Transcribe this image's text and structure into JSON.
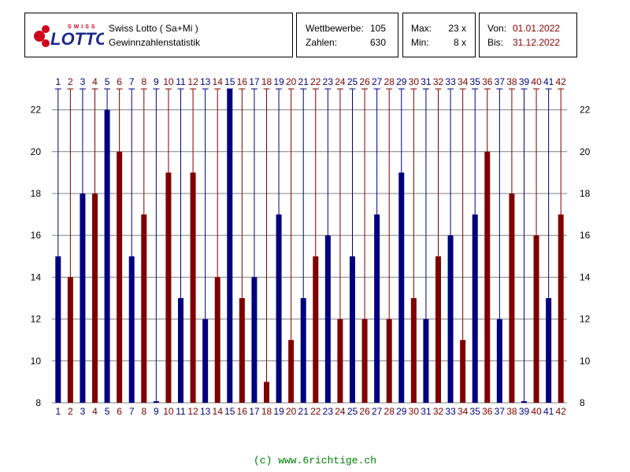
{
  "header": {
    "logo_top": "SWISS",
    "logo_main": "LOTTO",
    "title": "Swiss Lotto ( Sa+Mi )",
    "subtitle": "Gewinnzahlenstatistik",
    "competitions_label": "Wettbewerbe:",
    "competitions_value": "105",
    "numbers_label": "Zahlen:",
    "numbers_value": "630",
    "max_label": "Max:",
    "max_value": "23 x",
    "min_label": "Min:",
    "min_value": "8 x",
    "from_label": "Von:",
    "from_value": "01.01.2022",
    "to_label": "Bis:",
    "to_value": "31.12.2022"
  },
  "colors": {
    "odd_bar": "#00007f",
    "even_bar": "#7f0000",
    "grid": "#808080",
    "footer": "#008000"
  },
  "chart_data": {
    "type": "bar",
    "title": "",
    "xlabel": "",
    "ylabel": "",
    "categories": [
      "1",
      "2",
      "3",
      "4",
      "5",
      "6",
      "7",
      "8",
      "9",
      "10",
      "11",
      "12",
      "13",
      "14",
      "15",
      "16",
      "17",
      "18",
      "19",
      "20",
      "21",
      "22",
      "23",
      "24",
      "25",
      "26",
      "27",
      "28",
      "29",
      "30",
      "31",
      "32",
      "33",
      "34",
      "35",
      "36",
      "37",
      "38",
      "39",
      "40",
      "41",
      "42"
    ],
    "values": [
      15,
      14,
      18,
      18,
      22,
      20,
      15,
      17,
      8,
      19,
      13,
      19,
      12,
      14,
      23,
      13,
      14,
      9,
      17,
      11,
      13,
      15,
      16,
      12,
      15,
      12,
      17,
      12,
      19,
      13,
      12,
      15,
      16,
      11,
      17,
      20,
      12,
      18,
      8,
      16,
      13,
      17
    ],
    "ylim": [
      8,
      23
    ],
    "yticks": [
      8,
      10,
      12,
      14,
      16,
      18,
      20,
      22
    ],
    "grid": true,
    "legend": "none"
  },
  "footer": "(c) www.6richtige.ch"
}
